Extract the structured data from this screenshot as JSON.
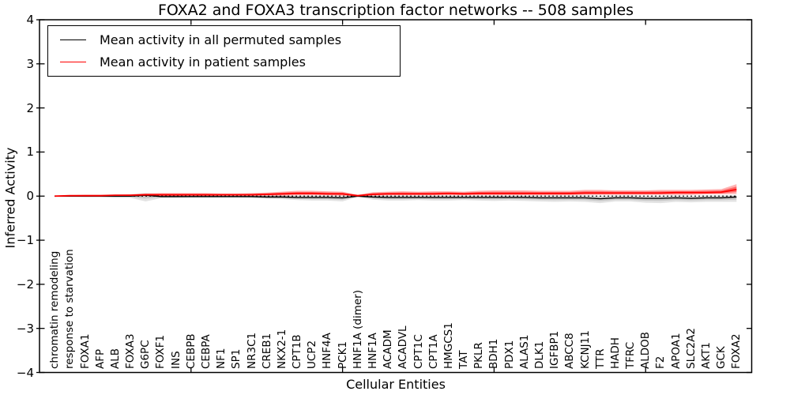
{
  "figure": {
    "background": "#ffffff"
  },
  "chart_data": {
    "type": "line",
    "title": "FOXA2 and FOXA3 transcription factor networks -- 508 samples",
    "xlabel": "Cellular Entities",
    "ylabel": "Inferred Activity",
    "ylim": [
      -4,
      4
    ],
    "grid": false,
    "yticks": [
      4,
      3,
      2,
      1,
      0,
      -1,
      -2,
      -3,
      -4
    ],
    "ytick_labels": [
      "4",
      "3",
      "2",
      "1",
      "0",
      "−1",
      "−2",
      "−3",
      "−4"
    ],
    "xtick_marks": [
      10,
      20,
      30,
      40
    ],
    "zero_line": {
      "y": 0,
      "style": "dotted",
      "color": "#000000"
    },
    "legend": {
      "position": "upper-left",
      "entries": [
        {
          "label": "Mean activity in all permuted samples",
          "color": "#000000"
        },
        {
          "label": "Mean activity in patient samples",
          "color": "#ff0000"
        }
      ]
    },
    "categories": [
      "chromatin remodeling",
      "response to starvation",
      "FOXA1",
      "AFP",
      "ALB",
      "FOXA3",
      "G6PC",
      "FOXF1",
      "INS",
      "CEBPB",
      "CEBPA",
      "NF1",
      "SP1",
      "NR3C1",
      "CREB1",
      "NKX2-1",
      "CPT1B",
      "UCP2",
      "HNF4A",
      "PCK1",
      "HNF1A (dimer)",
      "HNF1A",
      "ACADM",
      "ACADVL",
      "CPT1C",
      "CPT1A",
      "HMGCS1",
      "TAT",
      "PKLR",
      "BDH1",
      "PDX1",
      "ALAS1",
      "DLK1",
      "IGFBP1",
      "ABCC8",
      "KCNJ11",
      "TTR",
      "HADH",
      "TFRC",
      "ALDOB",
      "F2",
      "APOA1",
      "SLC2A2",
      "AKT1",
      "GCK",
      "FOXA2"
    ],
    "series": [
      {
        "name": "Mean activity in all permuted samples",
        "color": "#000000",
        "band_color": "#808080",
        "values": [
          0,
          0,
          0,
          0,
          0,
          0,
          0.02,
          -0.01,
          -0.01,
          -0.01,
          -0.01,
          -0.01,
          -0.01,
          -0.01,
          -0.02,
          -0.02,
          -0.03,
          -0.03,
          -0.03,
          -0.04,
          0,
          -0.02,
          -0.03,
          -0.03,
          -0.03,
          -0.03,
          -0.03,
          -0.03,
          -0.03,
          -0.03,
          -0.03,
          -0.03,
          -0.04,
          -0.04,
          -0.04,
          -0.04,
          -0.06,
          -0.04,
          -0.04,
          -0.05,
          -0.05,
          -0.04,
          -0.05,
          -0.04,
          -0.04,
          -0.02
        ],
        "band_lower": [
          -0.02,
          -0.02,
          -0.03,
          -0.03,
          -0.04,
          -0.04,
          -0.12,
          -0.05,
          -0.05,
          -0.04,
          -0.04,
          -0.04,
          -0.04,
          -0.05,
          -0.06,
          -0.07,
          -0.09,
          -0.1,
          -0.1,
          -0.12,
          -0.02,
          -0.08,
          -0.1,
          -0.1,
          -0.09,
          -0.1,
          -0.1,
          -0.09,
          -0.1,
          -0.11,
          -0.1,
          -0.11,
          -0.12,
          -0.13,
          -0.12,
          -0.13,
          -0.16,
          -0.12,
          -0.12,
          -0.15,
          -0.16,
          -0.13,
          -0.14,
          -0.13,
          -0.13,
          -0.13
        ],
        "band_upper": [
          0.02,
          0.02,
          0.03,
          0.03,
          0.04,
          0.04,
          0.07,
          0.04,
          0.03,
          0.03,
          0.03,
          0.02,
          0.02,
          0.02,
          0.02,
          0.02,
          0.02,
          0.02,
          0.02,
          0.01,
          0.02,
          0.02,
          0.02,
          0.02,
          0.02,
          0.02,
          0.02,
          0.02,
          0.02,
          0.02,
          0.02,
          0.02,
          0.02,
          0.02,
          0.02,
          0.02,
          0.01,
          0.02,
          0.02,
          0.01,
          0.01,
          0.02,
          0.01,
          0.02,
          0.02,
          0.03
        ]
      },
      {
        "name": "Mean activity in patient samples",
        "color": "#ff0000",
        "band_color": "#ff0000",
        "values": [
          0,
          0.01,
          0.01,
          0.01,
          0.02,
          0.02,
          0.03,
          0.03,
          0.03,
          0.03,
          0.03,
          0.03,
          0.03,
          0.03,
          0.04,
          0.05,
          0.06,
          0.06,
          0.05,
          0.05,
          0.01,
          0.04,
          0.05,
          0.05,
          0.05,
          0.05,
          0.06,
          0.05,
          0.06,
          0.06,
          0.06,
          0.06,
          0.06,
          0.06,
          0.06,
          0.07,
          0.07,
          0.07,
          0.07,
          0.07,
          0.07,
          0.08,
          0.08,
          0.08,
          0.09,
          0.15
        ],
        "band_lower": [
          -0.01,
          0,
          0,
          0,
          0,
          0,
          0,
          0,
          0,
          0.01,
          0,
          0.01,
          0.01,
          0.01,
          0.01,
          0.01,
          0.02,
          0.02,
          0.02,
          0.01,
          0,
          0.01,
          0.02,
          0.02,
          0.02,
          0.02,
          0.02,
          0.02,
          0.02,
          0.02,
          0.02,
          0.02,
          0.02,
          0.02,
          0.02,
          0.03,
          0.03,
          0.03,
          0.03,
          0.03,
          0.03,
          0.03,
          0.03,
          0.04,
          0.04,
          0.05
        ],
        "band_upper": [
          0.01,
          0.02,
          0.03,
          0.03,
          0.03,
          0.04,
          0.06,
          0.07,
          0.07,
          0.07,
          0.07,
          0.06,
          0.06,
          0.07,
          0.08,
          0.1,
          0.12,
          0.12,
          0.11,
          0.1,
          0.03,
          0.09,
          0.1,
          0.11,
          0.1,
          0.11,
          0.11,
          0.1,
          0.12,
          0.13,
          0.13,
          0.13,
          0.12,
          0.12,
          0.12,
          0.14,
          0.14,
          0.13,
          0.13,
          0.13,
          0.14,
          0.14,
          0.14,
          0.15,
          0.16,
          0.27
        ]
      }
    ]
  }
}
